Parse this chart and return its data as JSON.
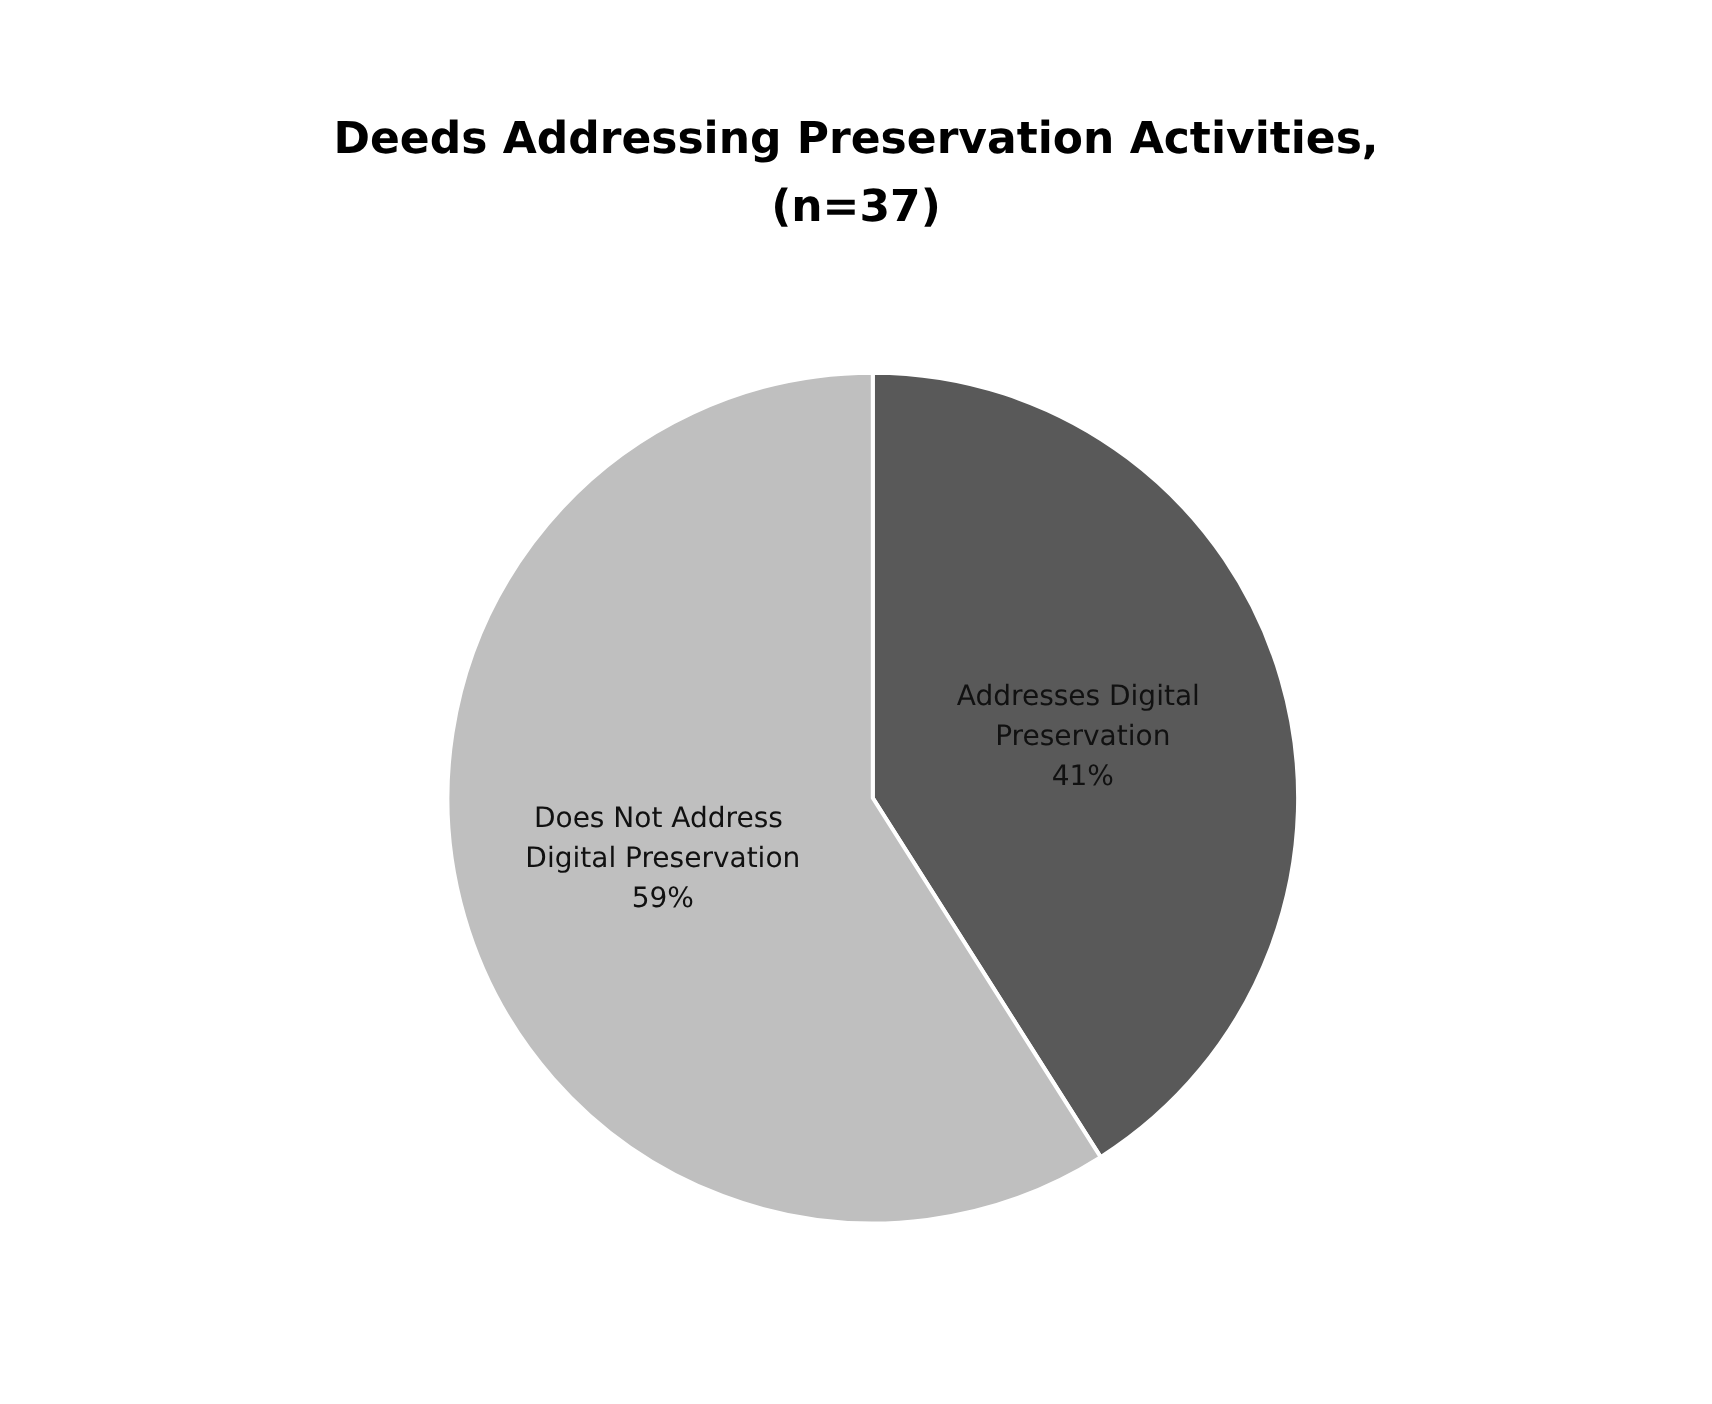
{
  "chart_data": {
    "type": "pie",
    "title": "Deeds Addressing Preservation Activities,\n(n=37)",
    "categories": [
      "Addresses Digital Preservation",
      "Does Not Address Digital Preservation"
    ],
    "values": [
      41,
      59
    ],
    "colors": [
      "#595959",
      "#bfbfbf"
    ],
    "value_labels": [
      "41%",
      "59%"
    ]
  }
}
